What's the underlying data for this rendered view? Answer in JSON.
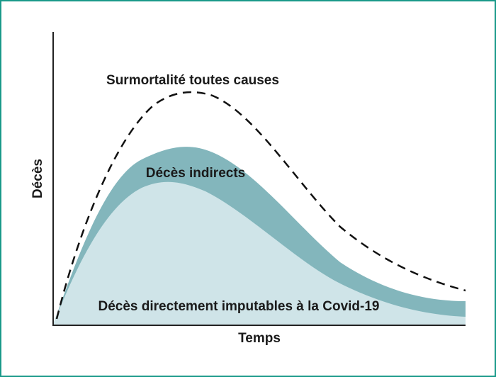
{
  "diagram": {
    "y_axis_label": "Décès",
    "x_axis_label": "Temps",
    "curve_excess_label": "Surmortalité toutes causes",
    "area_indirect_label": "Décès indirects",
    "area_direct_label": "Décès directement imputables à la Covid-19"
  },
  "colors": {
    "frame_border": "#1a9a8a",
    "indirect_fill": "#83b6bc",
    "direct_fill": "#cfe4e8",
    "dashed_line": "#111111",
    "axis": "#222222"
  }
}
